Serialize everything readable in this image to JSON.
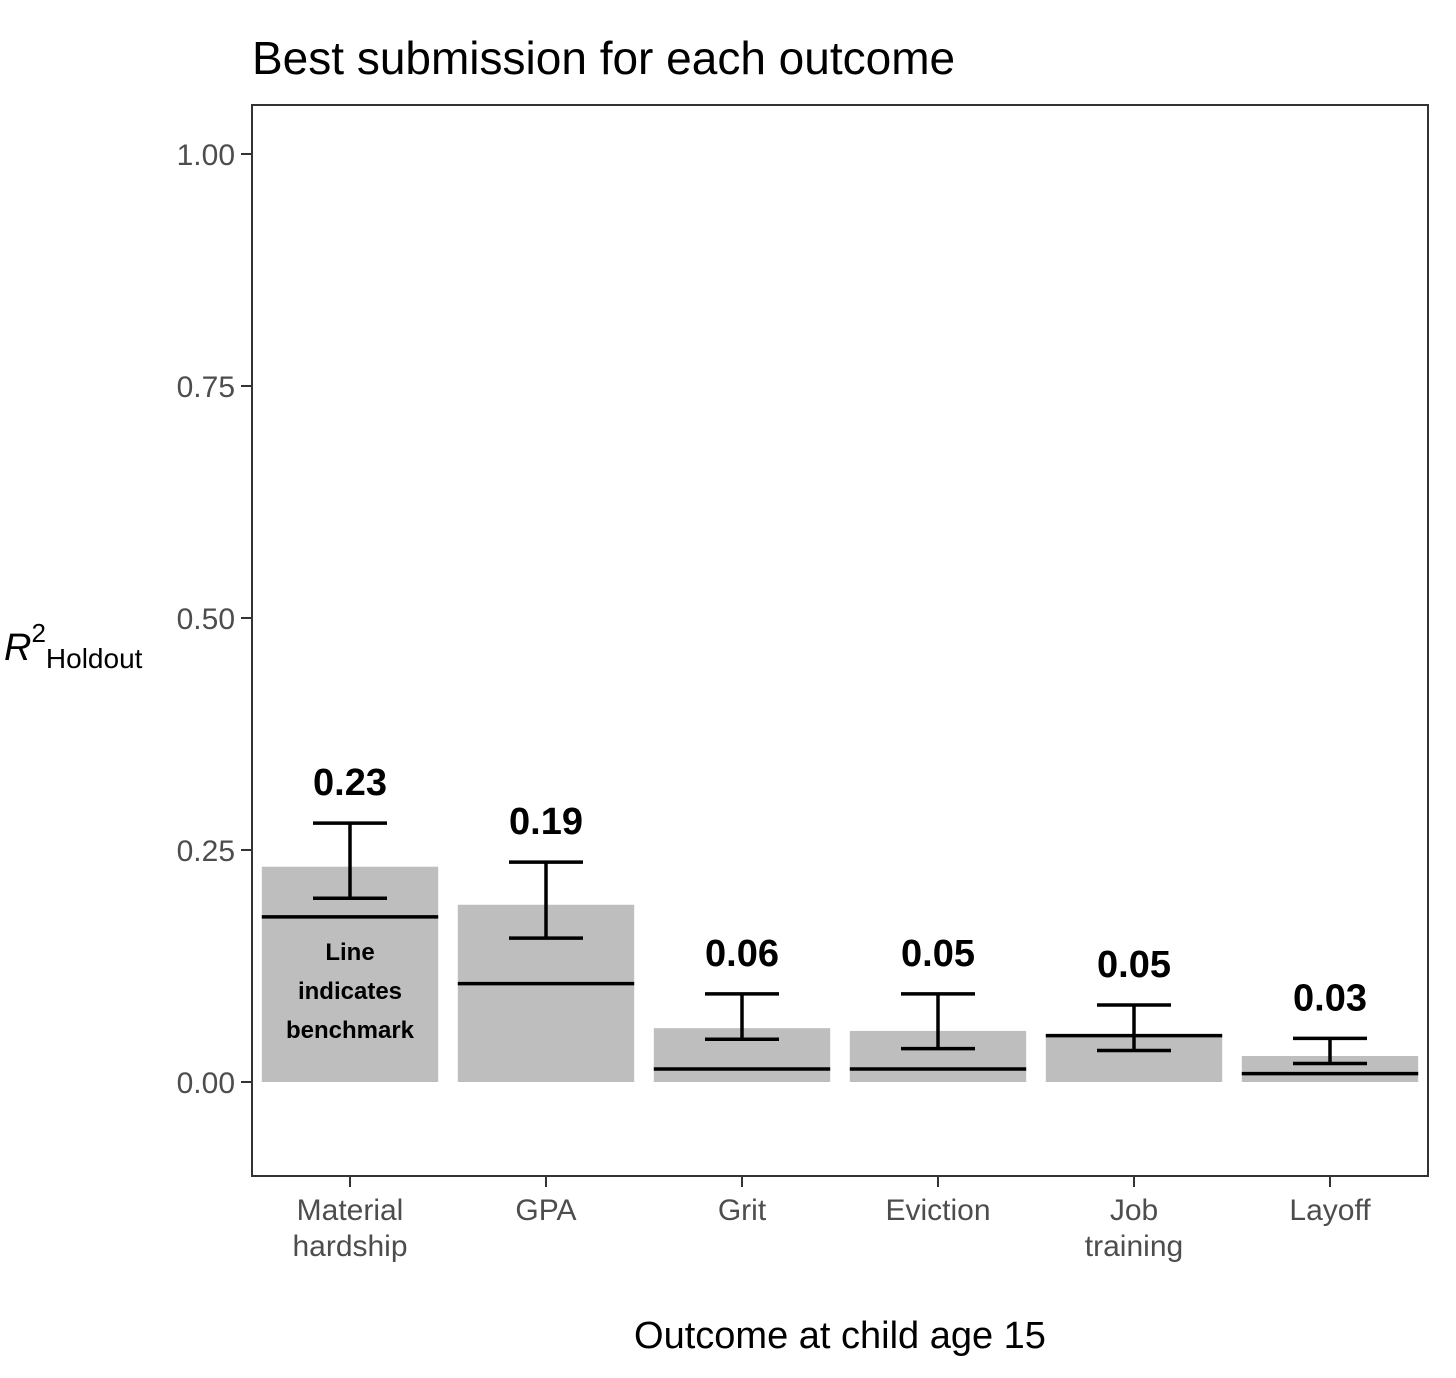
{
  "chart_data": {
    "type": "bar",
    "title": "Best submission for each outcome",
    "xlabel": "Outcome at child age 15",
    "ylabel": {
      "main": "R",
      "superscript": "2",
      "subscript": "Holdout"
    },
    "ylim": [
      -0.1,
      1.05
    ],
    "yticks": [
      "0.00",
      "0.25",
      "0.50",
      "0.75",
      "1.00"
    ],
    "grid": false,
    "categories": [
      [
        "Material",
        "hardship"
      ],
      [
        "GPA"
      ],
      [
        "Grit"
      ],
      [
        "Eviction"
      ],
      [
        "Job",
        "training"
      ],
      [
        "Layoff"
      ]
    ],
    "series": [
      {
        "values": [
          0.232,
          0.191,
          0.058,
          0.055,
          0.05,
          0.028
        ],
        "value_labels": [
          "0.23",
          "0.19",
          "0.06",
          "0.05",
          "0.05",
          "0.03"
        ],
        "error_low": [
          0.198,
          0.155,
          0.046,
          0.036,
          0.034,
          0.02
        ],
        "error_high": [
          0.279,
          0.237,
          0.095,
          0.095,
          0.083,
          0.047
        ],
        "benchmark": [
          0.178,
          0.106,
          0.014,
          0.014,
          0.05,
          0.009
        ]
      }
    ],
    "annotation": [
      "Line",
      "indicates",
      "benchmark"
    ],
    "colors": {
      "bar": "#bebebe",
      "line": "#000000",
      "axis_text": "#4d4d4d",
      "panel_border": "#333333"
    }
  }
}
